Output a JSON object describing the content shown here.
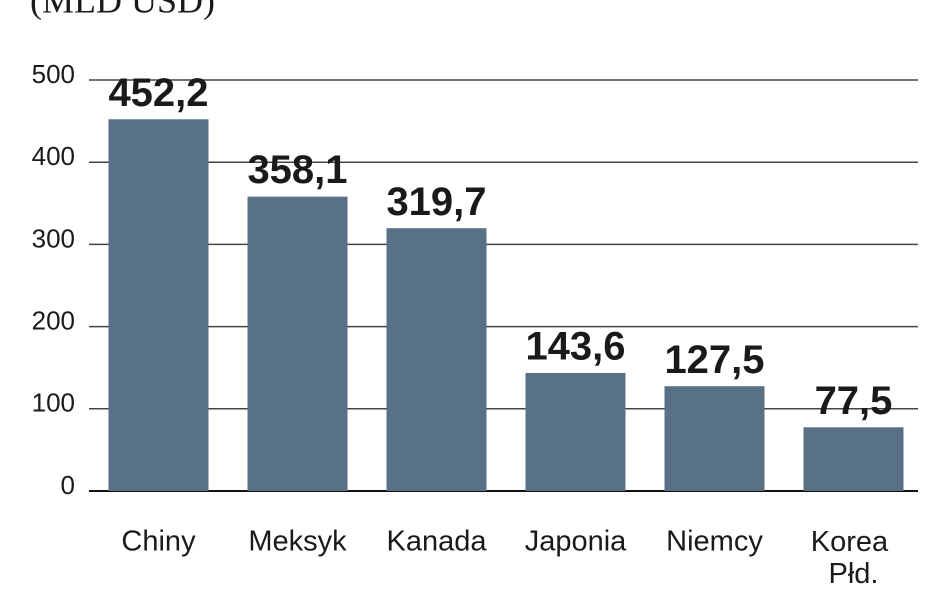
{
  "chart_data": {
    "type": "bar",
    "title": "(MLD USD)",
    "categories": [
      "Chiny",
      "Meksyk",
      "Kanada",
      "Japonia",
      "Niemcy",
      "Korea Płd."
    ],
    "values": [
      452.2,
      358.1,
      319.7,
      143.6,
      127.5,
      77.5
    ],
    "value_labels": [
      "452,2",
      "358,1",
      "319,7",
      "143,6",
      "127,5",
      "77,5"
    ],
    "color": "#587187",
    "ylim": [
      0,
      500
    ],
    "yticks": [
      0,
      100,
      200,
      300,
      400,
      500
    ],
    "grid": true
  }
}
